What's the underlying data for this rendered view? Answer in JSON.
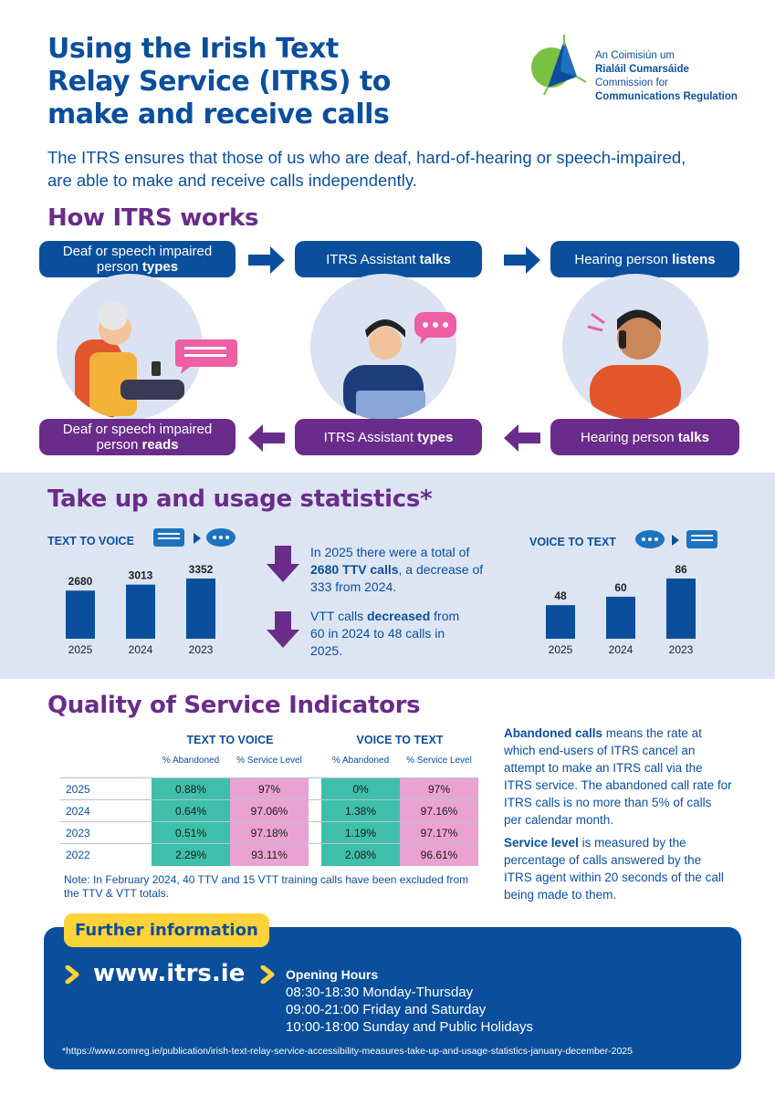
{
  "header": {
    "title_lines": [
      "Using the Irish Text",
      "Relay Service (ITRS) to",
      "make and receive calls"
    ],
    "logo": {
      "line1": "An Coimisiún um",
      "line2": "Rialáil Cumarsáide",
      "line3": "Commission for",
      "line4": "Communications Regulation"
    },
    "intro": "The ITRS ensures that those of us who are deaf, hard-of-hearing or speech-impaired, are able to make and receive calls independently."
  },
  "how": {
    "heading": "How ITRS works",
    "top": [
      {
        "pre": "Deaf or speech impaired person ",
        "bold": "types"
      },
      {
        "pre": "ITRS Assistant ",
        "bold": "talks"
      },
      {
        "pre": "Hearing person ",
        "bold": "listens"
      }
    ],
    "bottom": [
      {
        "pre": "Deaf or speech impaired person ",
        "bold": "reads"
      },
      {
        "pre": "ITRS Assistant ",
        "bold": "types"
      },
      {
        "pre": "Hearing person ",
        "bold": "talks"
      }
    ],
    "colors": {
      "blue": "#0b4f9c",
      "purple": "#6a2c8a"
    }
  },
  "stats": {
    "heading": "Take up and usage statistics*",
    "ttv_label": "TEXT TO VOICE",
    "vtt_label": "VOICE TO TEXT",
    "ttv_text": {
      "pre": "In 2025 there were a total of ",
      "bold": "2680 TTV calls",
      "post": ", a decrease of 333 from 2024."
    },
    "vtt_text": {
      "pre": "VTT calls ",
      "bold": "decreased",
      "post": " from 60 in 2024 to 48 calls in 2025."
    }
  },
  "chart_data": [
    {
      "type": "bar",
      "title": "TEXT TO VOICE",
      "categories": [
        "2025",
        "2024",
        "2023"
      ],
      "values": [
        2680,
        3013,
        3352
      ],
      "ylim": [
        0,
        3352
      ]
    },
    {
      "type": "bar",
      "title": "VOICE TO TEXT",
      "categories": [
        "2025",
        "2024",
        "2023"
      ],
      "values": [
        48,
        60,
        86
      ],
      "ylim": [
        0,
        86
      ]
    }
  ],
  "qos": {
    "heading": "Quality of Service Indicators",
    "group1": "TEXT TO VOICE",
    "group2": "VOICE TO TEXT",
    "sub_abandoned": "% Abandoned",
    "sub_service": "% Service Level",
    "rows": [
      {
        "year": "2025",
        "ttv_ab": "0.88%",
        "ttv_sl": "97%",
        "vtt_ab": "0%",
        "vtt_sl": "97%"
      },
      {
        "year": "2024",
        "ttv_ab": "0.64%",
        "ttv_sl": "97.06%",
        "vtt_ab": "1.38%",
        "vtt_sl": "97.16%"
      },
      {
        "year": "2023",
        "ttv_ab": "0.51%",
        "ttv_sl": "97.18%",
        "vtt_ab": "1.19%",
        "vtt_sl": "97.17%"
      },
      {
        "year": "2022",
        "ttv_ab": "2.29%",
        "ttv_sl": "93.11%",
        "vtt_ab": "2.08%",
        "vtt_sl": "96.61%"
      }
    ],
    "note": "Note: In February 2024, 40 TTV and 15 VTT training calls have been excluded from the TTV & VTT totals.",
    "abandoned_def": {
      "bold": "Abandoned calls",
      "rest": " means the rate at which end-users of ITRS cancel an attempt to make an ITRS call via the ITRS service. The abandoned call rate for ITRS calls is no more than 5% of calls per calendar month."
    },
    "service_def": {
      "bold": "Service level",
      "rest": " is measured by the percentage of calls answered by the ITRS agent within 20 seconds of the call being made to them."
    }
  },
  "info": {
    "tag": "Further information",
    "url": "www.itrs.ie",
    "hours_title": "Opening Hours",
    "hours": [
      "08:30-18:30 Monday-Thursday",
      "09:00-21:00 Friday and Saturday",
      "10:00-18:00 Sunday and Public Holidays"
    ],
    "footnote": "*https://www.comreg.ie/publication/irish-text-relay-service-accessibility-measures-take-up-and-usage-statistics-january-december-2025"
  }
}
